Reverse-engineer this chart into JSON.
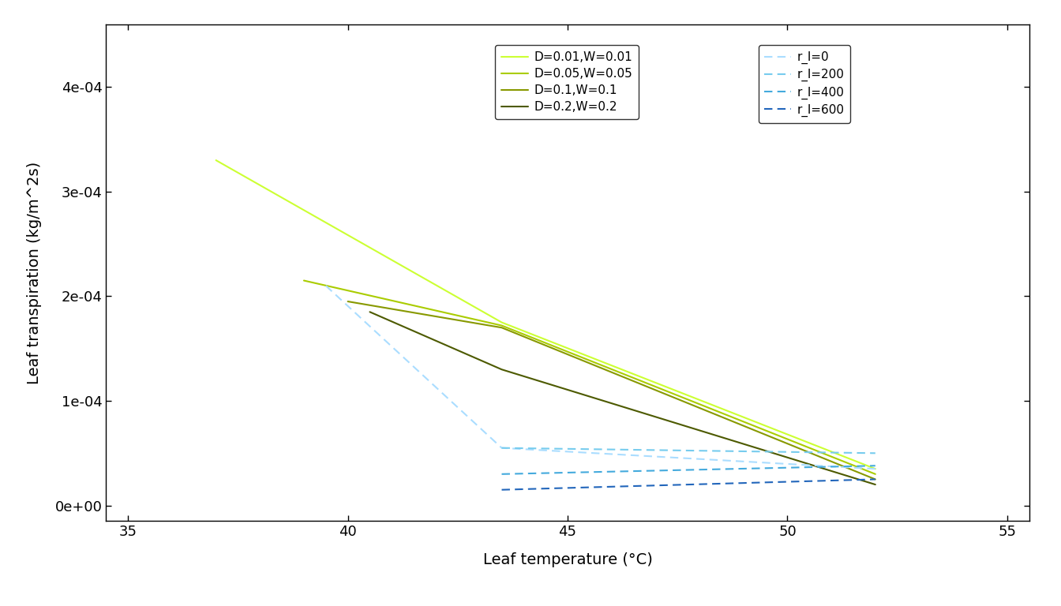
{
  "xlabel": "Leaf temperature (°C)",
  "ylabel": "Leaf transpiration (kg/m^2s)",
  "xlim": [
    34.5,
    55.5
  ],
  "ylim": [
    -1.5e-05,
    0.00046
  ],
  "xticks": [
    35,
    40,
    45,
    50,
    55
  ],
  "yticks": [
    0.0,
    0.0001,
    0.0002,
    0.0003,
    0.0004
  ],
  "background_color": "#ffffff",
  "green_lines": [
    {
      "label": "D=0.01,W=0.01",
      "color": "#ccff33",
      "x": [
        37.0,
        43.5,
        52.0
      ],
      "y": [
        0.00033,
        0.000175,
        3.5e-05
      ]
    },
    {
      "label": "D=0.05,W=0.05",
      "color": "#aacc00",
      "x": [
        39.0,
        43.5,
        52.0
      ],
      "y": [
        0.000215,
        0.000172,
        3e-05
      ]
    },
    {
      "label": "D=0.1,W=0.1",
      "color": "#889900",
      "x": [
        40.0,
        43.5,
        52.0
      ],
      "y": [
        0.000195,
        0.00017,
        2.5e-05
      ]
    },
    {
      "label": "D=0.2,W=0.2",
      "color": "#4d5a00",
      "x": [
        40.5,
        43.5,
        52.0
      ],
      "y": [
        0.000185,
        0.00013,
        2e-05
      ]
    }
  ],
  "blue_lines": [
    {
      "label": "r_l=0",
      "color": "#aaddff",
      "x": [
        39.5,
        43.5,
        52.0
      ],
      "y": [
        0.00021,
        5.5e-05,
        3.5e-05
      ]
    },
    {
      "label": "r_l=200",
      "color": "#77ccee",
      "x": [
        43.5,
        52.0
      ],
      "y": [
        5.5e-05,
        5e-05
      ]
    },
    {
      "label": "r_l=400",
      "color": "#44aadd",
      "x": [
        43.5,
        52.0
      ],
      "y": [
        3e-05,
        3.8e-05
      ]
    },
    {
      "label": "r_l=600",
      "color": "#2266bb",
      "x": [
        43.5,
        52.0
      ],
      "y": [
        1.5e-05,
        2.5e-05
      ]
    }
  ],
  "xlabel_fontsize": 14,
  "ylabel_fontsize": 14,
  "tick_fontsize": 13
}
